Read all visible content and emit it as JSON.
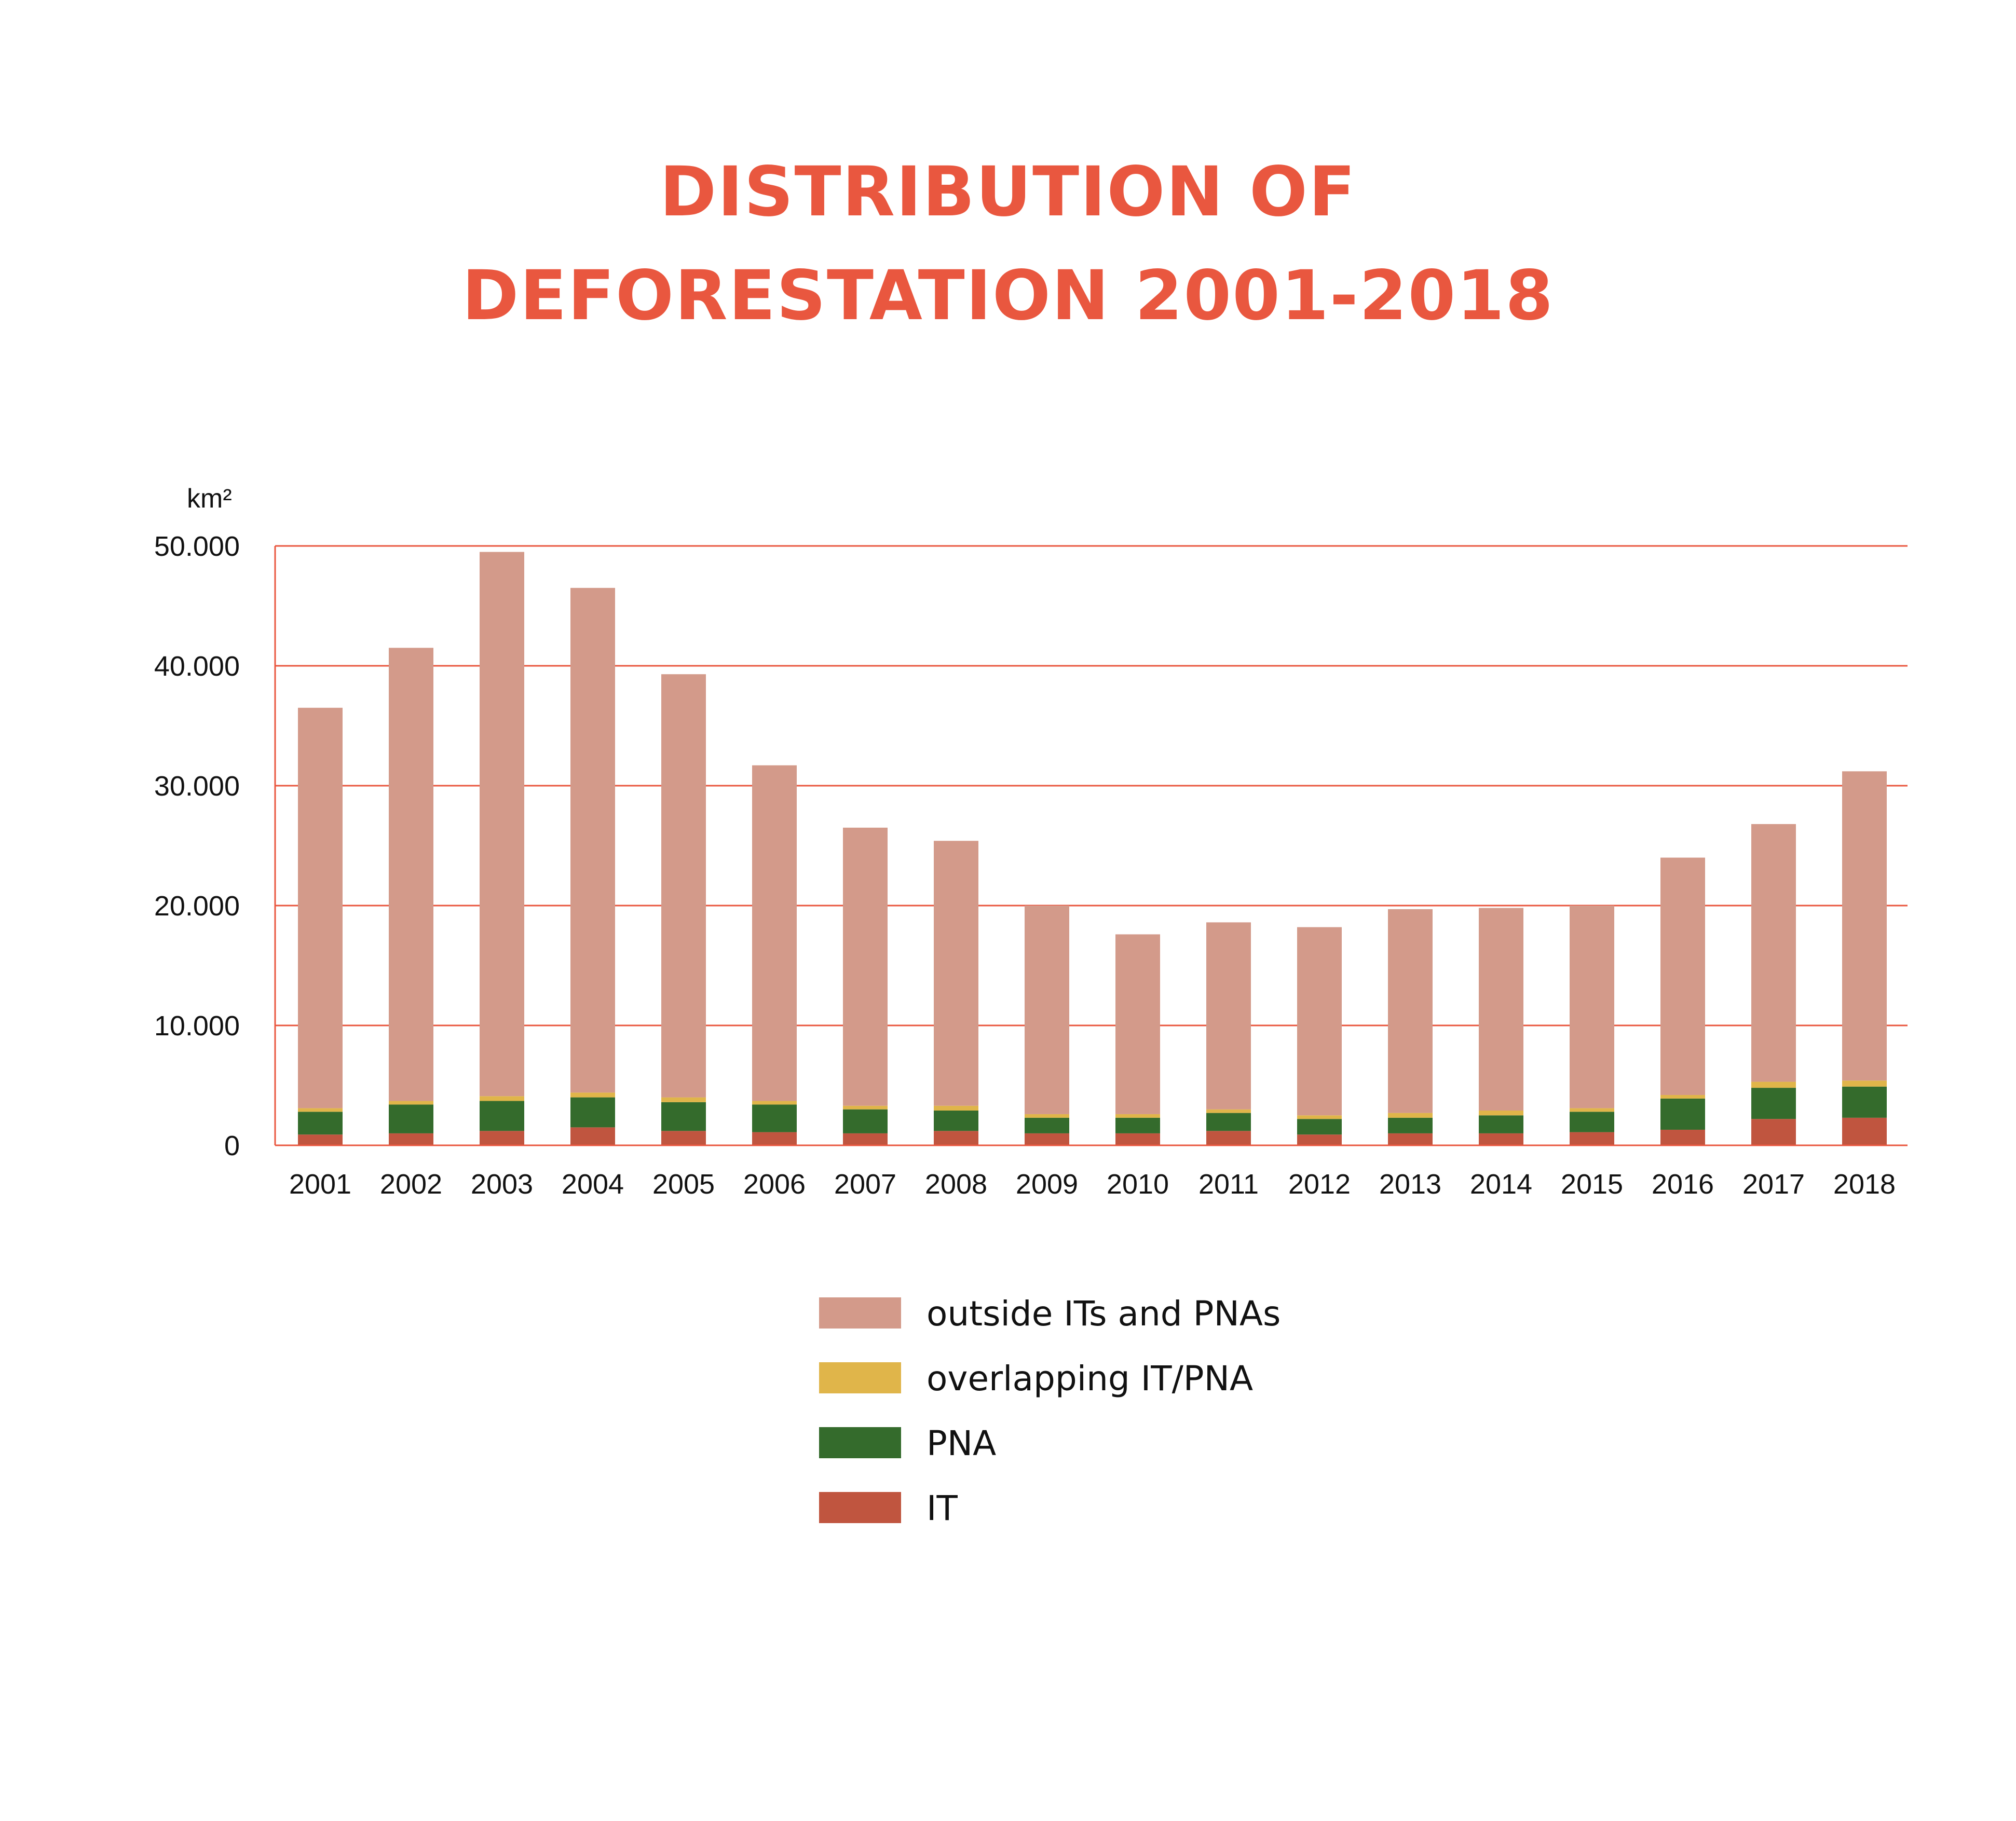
{
  "chart_data": {
    "type": "bar",
    "stacked": true,
    "title_lines": [
      "DISTRIBUTION OF",
      "DEFORESTATION 2001-2018"
    ],
    "unit_label": "km²",
    "ylim": [
      0,
      50000
    ],
    "y_ticks": [
      {
        "value": 0,
        "label": "0"
      },
      {
        "value": 10000,
        "label": "10.000"
      },
      {
        "value": 20000,
        "label": "20.000"
      },
      {
        "value": 30000,
        "label": "30.000"
      },
      {
        "value": 40000,
        "label": "40.000"
      },
      {
        "value": 50000,
        "label": "50.000"
      }
    ],
    "categories": [
      "2001",
      "2002",
      "2003",
      "2004",
      "2005",
      "2006",
      "2007",
      "2008",
      "2009",
      "2010",
      "2011",
      "2012",
      "2013",
      "2014",
      "2015",
      "2016",
      "2017",
      "2018"
    ],
    "series": [
      {
        "name": "IT",
        "color": "#c0553f",
        "values": [
          900,
          1000,
          1200,
          1500,
          1200,
          1100,
          1000,
          1200,
          1000,
          1000,
          1200,
          900,
          1000,
          1000,
          1100,
          1300,
          2200,
          2300
        ]
      },
      {
        "name": "PNA",
        "color": "#346b2c",
        "values": [
          1900,
          2400,
          2500,
          2500,
          2400,
          2300,
          2000,
          1700,
          1300,
          1300,
          1500,
          1300,
          1300,
          1500,
          1700,
          2600,
          2600,
          2600
        ]
      },
      {
        "name": "overlapping IT/PNA",
        "color": "#e0b54a",
        "values": [
          300,
          300,
          400,
          400,
          400,
          300,
          300,
          400,
          300,
          300,
          300,
          300,
          400,
          400,
          300,
          300,
          500,
          500
        ]
      },
      {
        "name": "outside ITs and PNAs",
        "color": "#d39a8a",
        "values": [
          33400,
          37800,
          45400,
          42100,
          35300,
          28000,
          23200,
          22100,
          17400,
          15000,
          15600,
          15700,
          17000,
          16900,
          16900,
          19800,
          21500,
          25800
        ]
      }
    ],
    "legend_order": [
      "outside ITs and PNAs",
      "overlapping IT/PNA",
      "PNA",
      "IT"
    ],
    "grid": true,
    "grid_color": "#e9573f",
    "legend_position": "bottom-center"
  }
}
